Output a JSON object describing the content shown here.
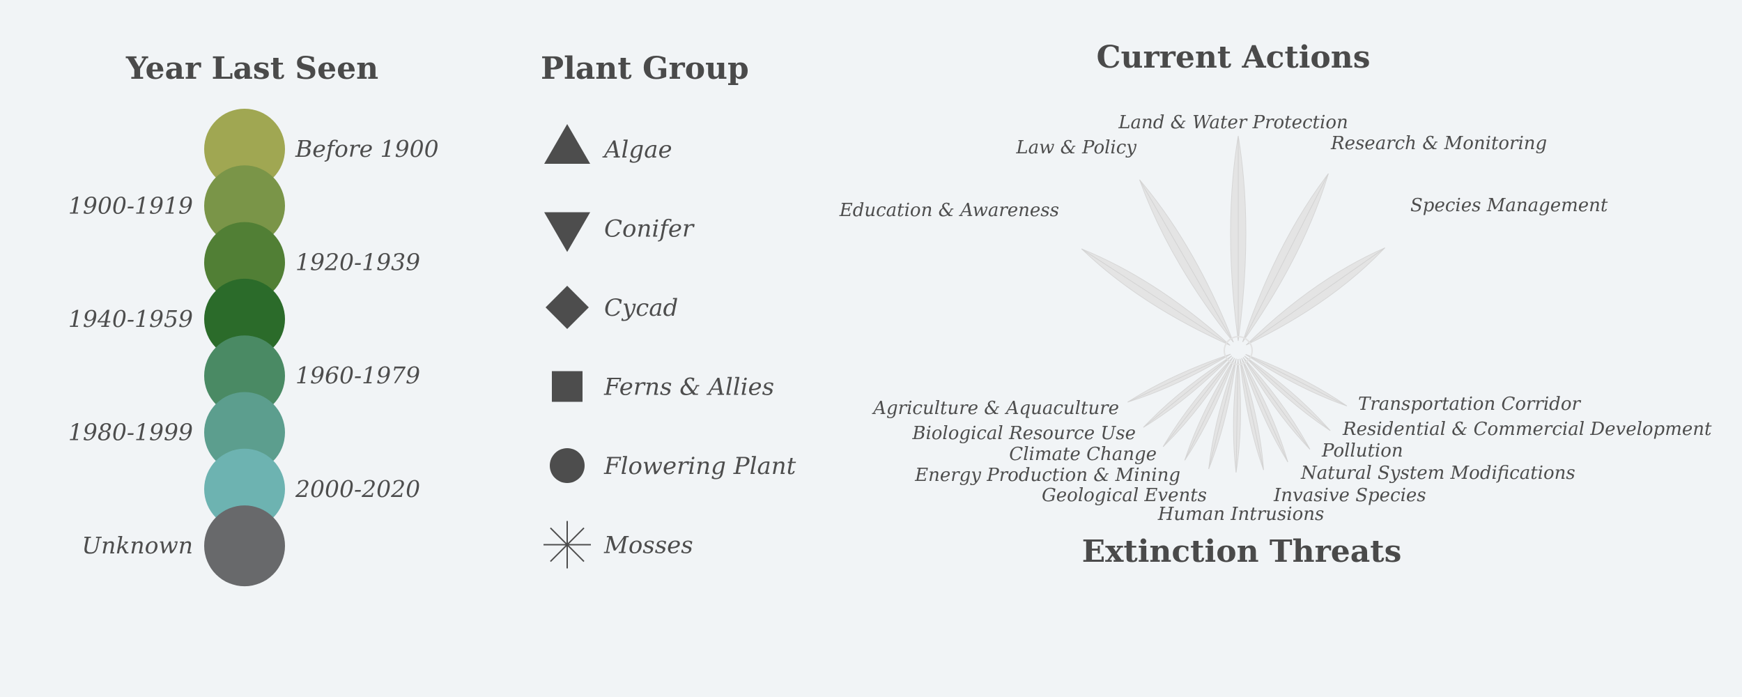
{
  "year_legend": {
    "title": "Year Last Seen",
    "items": [
      {
        "label": "Before 1900",
        "color": "#a0a752"
      },
      {
        "label": "1900-1919",
        "color": "#7a9548"
      },
      {
        "label": "1920-1939",
        "color": "#517f35"
      },
      {
        "label": "1940-1959",
        "color": "#2b6b2a"
      },
      {
        "label": "1960-1979",
        "color": "#4a8a64"
      },
      {
        "label": "1980-1999",
        "color": "#5c9e8e"
      },
      {
        "label": "2000-2020",
        "color": "#6db3b1"
      },
      {
        "label": "Unknown",
        "color": "#68696b"
      }
    ]
  },
  "group_legend": {
    "title": "Plant Group",
    "items": [
      {
        "label": "Algae",
        "icon": "triangle-up-icon"
      },
      {
        "label": "Conifer",
        "icon": "triangle-down-icon"
      },
      {
        "label": "Cycad",
        "icon": "diamond-icon"
      },
      {
        "label": "Ferns & Allies",
        "icon": "square-icon"
      },
      {
        "label": "Flowering Plant",
        "icon": "circle-icon"
      },
      {
        "label": "Mosses",
        "icon": "asterisk-icon"
      }
    ]
  },
  "actions": {
    "title": "Current Actions",
    "items": [
      "Education & Awareness",
      "Law & Policy",
      "Land & Water Protection",
      "Research & Monitoring",
      "Species Management"
    ]
  },
  "threats": {
    "title": "Extinction Threats",
    "items": [
      "Agriculture & Aquaculture",
      "Biological Resource Use",
      "Climate Change",
      "Energy Production & Mining",
      "Geological Events",
      "Human Intrusions",
      "Invasive Species",
      "Natural System Modifications",
      "Pollution",
      "Residential & Commercial Development",
      "Transportation Corridor"
    ]
  },
  "colors": {
    "text": "#4a4a4a",
    "petal": "#e4e4e4",
    "icon": "#4d4d4d",
    "background": "#f1f4f6"
  }
}
